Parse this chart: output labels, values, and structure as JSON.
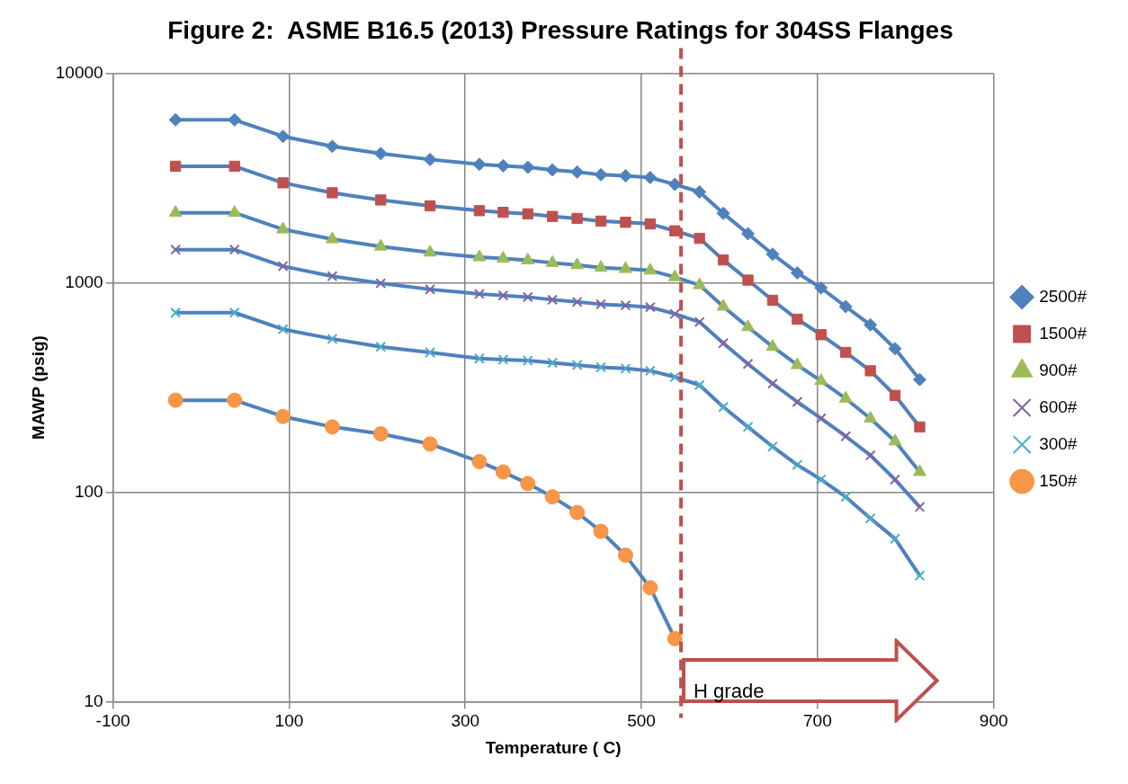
{
  "chart_data": {
    "type": "line",
    "title": "Figure 2:  ASME B16.5 (2013) Pressure Ratings for 304SS Flanges",
    "xlabel": "Temperature ( C)",
    "ylabel": "MAWP (psig)",
    "x": [
      -29,
      38,
      93,
      149,
      204,
      260,
      316,
      343,
      371,
      399,
      427,
      454,
      482,
      510,
      538,
      566,
      593,
      621,
      649,
      677,
      704,
      732,
      760,
      788,
      816
    ],
    "series": [
      {
        "name": "2500#",
        "color": "#4f81bd",
        "marker": "diamond",
        "values": [
          6000,
          6000,
          5000,
          4480,
          4140,
          3880,
          3680,
          3620,
          3560,
          3460,
          3380,
          3280,
          3240,
          3180,
          2950,
          2715,
          2145,
          1715,
          1370,
          1115,
          945,
          770,
          630,
          485,
          345
        ]
      },
      {
        "name": "1500#",
        "color": "#c0504d",
        "marker": "square",
        "values": [
          3600,
          3600,
          3000,
          2690,
          2485,
          2330,
          2210,
          2170,
          2135,
          2075,
          2030,
          1970,
          1945,
          1910,
          1770,
          1630,
          1285,
          1030,
          825,
          670,
          565,
          465,
          380,
          290,
          205
        ]
      },
      {
        "name": "900#",
        "color": "#9bbb59",
        "marker": "triangle",
        "values": [
          2160,
          2160,
          1800,
          1615,
          1490,
          1395,
          1325,
          1305,
          1280,
          1245,
          1215,
          1180,
          1165,
          1145,
          1065,
          975,
          770,
          615,
          495,
          405,
          340,
          280,
          225,
          175,
          125
        ]
      },
      {
        "name": "600#",
        "color": "#8064a2",
        "marker": "cross",
        "values": [
          1440,
          1440,
          1200,
          1075,
          995,
          930,
          885,
          870,
          855,
          830,
          810,
          790,
          780,
          765,
          710,
          650,
          515,
          410,
          330,
          270,
          225,
          185,
          150,
          115,
          85
        ]
      },
      {
        "name": "300#",
        "color": "#4bacc6",
        "marker": "cross",
        "values": [
          720,
          720,
          600,
          540,
          495,
          465,
          435,
          430,
          425,
          415,
          405,
          395,
          390,
          380,
          355,
          325,
          255,
          205,
          165,
          135,
          115,
          95,
          75,
          60,
          40
        ]
      },
      {
        "name": "150#",
        "color": "#f79646",
        "marker": "circle",
        "values": [
          275,
          275,
          230,
          205,
          190,
          170,
          140,
          125,
          110,
          95,
          80,
          65,
          50,
          35,
          20,
          null,
          null,
          null,
          null,
          null,
          null,
          null,
          null,
          null,
          null
        ]
      }
    ],
    "xlim": [
      -100,
      900
    ],
    "xticks": [
      -100,
      100,
      300,
      500,
      700,
      900
    ],
    "ylim": [
      10,
      10000
    ],
    "yticks": [
      10,
      100,
      1000,
      10000
    ],
    "log": "y",
    "grid": true,
    "legend": "right",
    "ref_lines": [
      {
        "axis": "x",
        "value": 545,
        "color": "#c0504d",
        "line_style": "dashed"
      }
    ],
    "annotations": [
      "H grade"
    ]
  }
}
